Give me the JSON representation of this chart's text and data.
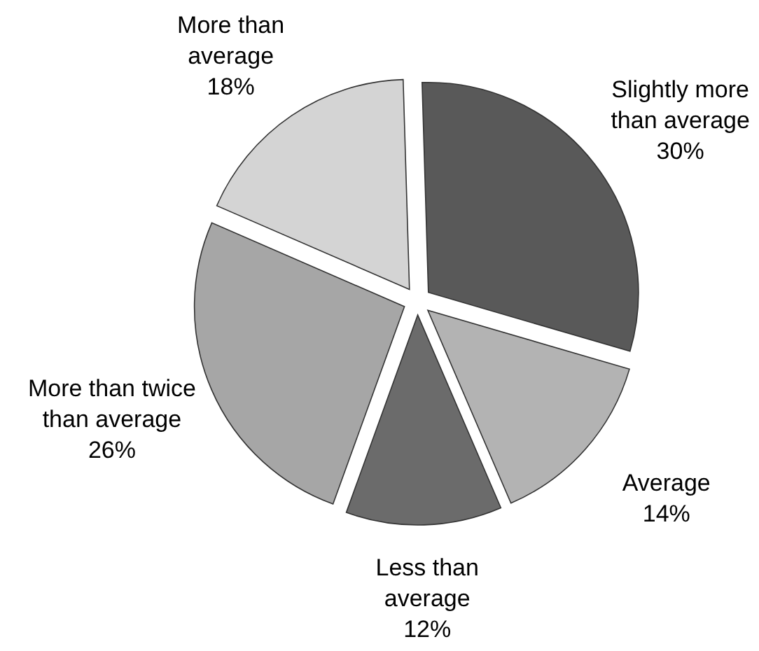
{
  "chart_data": {
    "type": "pie",
    "categories": [
      "Slightly more\nthan average",
      "Average",
      "Less than\naverage",
      "More than twice\nthan average",
      "More than\naverage"
    ],
    "values": [
      30,
      14,
      12,
      26,
      18
    ],
    "colors": [
      "#595959",
      "#b3b3b3",
      "#6b6b6b",
      "#a6a6a6",
      "#d4d4d4"
    ],
    "value_labels": [
      "30%",
      "14%",
      "12%",
      "26%",
      "18%"
    ]
  }
}
